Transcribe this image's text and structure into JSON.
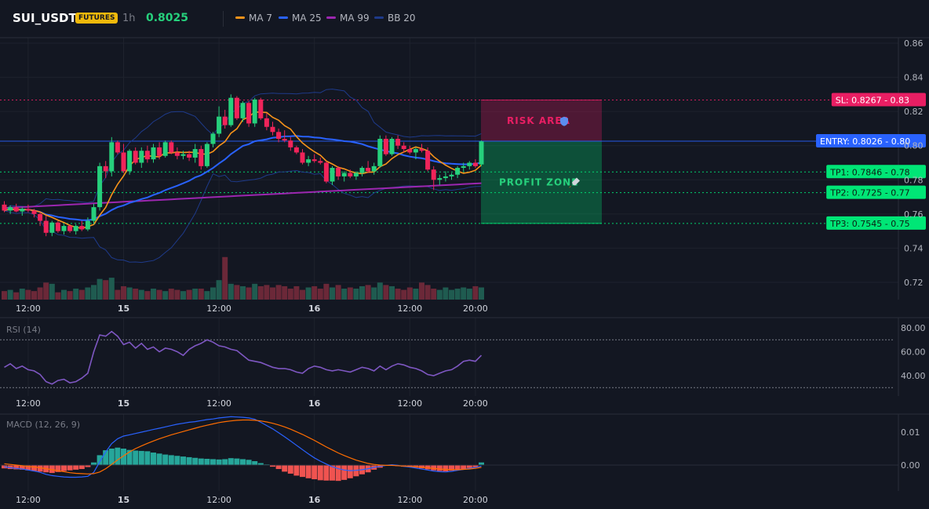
{
  "header": {
    "symbol": "SUI_USDT",
    "badge": "FUTURES",
    "timeframe": "1h",
    "price": "0.8025",
    "legend": [
      {
        "name": "MA 7",
        "color": "#f7931a"
      },
      {
        "name": "MA 25",
        "color": "#2962ff"
      },
      {
        "name": "MA 99",
        "color": "#9c27b0"
      },
      {
        "name": "BB 20",
        "color": "#1e3a8a"
      }
    ]
  },
  "chart_data": [
    {
      "type": "candlestick",
      "panel": "price",
      "y_ticks": [
        "0.86",
        "0.84",
        "0.82",
        "0.80",
        "0.78",
        "0.76",
        "0.74",
        "0.72"
      ],
      "ylim": [
        0.71,
        0.87
      ],
      "x_tick_labels": [
        "12:00",
        "15",
        "12:00",
        "16",
        "12:00",
        "20:00"
      ],
      "x_tick_index": [
        4,
        20,
        36,
        52,
        68,
        79
      ],
      "candles": [
        [
          0.7655,
          0.7675,
          0.761,
          0.762
        ],
        [
          0.762,
          0.765,
          0.76,
          0.764
        ],
        [
          0.764,
          0.766,
          0.761,
          0.7615
        ],
        [
          0.7615,
          0.764,
          0.759,
          0.763
        ],
        [
          0.763,
          0.7655,
          0.761,
          0.762
        ],
        [
          0.762,
          0.763,
          0.758,
          0.76
        ],
        [
          0.76,
          0.761,
          0.753,
          0.756
        ],
        [
          0.756,
          0.759,
          0.747,
          0.749
        ],
        [
          0.749,
          0.756,
          0.747,
          0.755
        ],
        [
          0.755,
          0.756,
          0.749,
          0.75
        ],
        [
          0.75,
          0.754,
          0.748,
          0.753
        ],
        [
          0.753,
          0.754,
          0.749,
          0.75
        ],
        [
          0.75,
          0.754,
          0.748,
          0.753
        ],
        [
          0.753,
          0.756,
          0.75,
          0.751
        ],
        [
          0.751,
          0.758,
          0.75,
          0.756
        ],
        [
          0.756,
          0.766,
          0.754,
          0.764
        ],
        [
          0.764,
          0.79,
          0.762,
          0.788
        ],
        [
          0.788,
          0.791,
          0.781,
          0.785
        ],
        [
          0.785,
          0.805,
          0.782,
          0.802
        ],
        [
          0.802,
          0.803,
          0.795,
          0.796
        ],
        [
          0.796,
          0.801,
          0.784,
          0.785
        ],
        [
          0.785,
          0.798,
          0.783,
          0.797
        ],
        [
          0.797,
          0.799,
          0.789,
          0.79
        ],
        [
          0.79,
          0.799,
          0.787,
          0.797
        ],
        [
          0.797,
          0.8,
          0.79,
          0.792
        ],
        [
          0.792,
          0.801,
          0.79,
          0.799
        ],
        [
          0.799,
          0.802,
          0.792,
          0.794
        ],
        [
          0.794,
          0.803,
          0.793,
          0.802
        ],
        [
          0.802,
          0.803,
          0.795,
          0.796
        ],
        [
          0.796,
          0.799,
          0.792,
          0.794
        ],
        [
          0.794,
          0.797,
          0.792,
          0.795
        ],
        [
          0.795,
          0.797,
          0.791,
          0.793
        ],
        [
          0.793,
          0.801,
          0.79,
          0.798
        ],
        [
          0.798,
          0.8,
          0.786,
          0.788
        ],
        [
          0.788,
          0.802,
          0.787,
          0.801
        ],
        [
          0.801,
          0.808,
          0.799,
          0.807
        ],
        [
          0.807,
          0.823,
          0.805,
          0.817
        ],
        [
          0.817,
          0.821,
          0.81,
          0.812
        ],
        [
          0.812,
          0.83,
          0.811,
          0.828
        ],
        [
          0.828,
          0.829,
          0.815,
          0.816
        ],
        [
          0.816,
          0.826,
          0.814,
          0.825
        ],
        [
          0.825,
          0.826,
          0.811,
          0.813
        ],
        [
          0.813,
          0.828,
          0.811,
          0.827
        ],
        [
          0.827,
          0.828,
          0.815,
          0.816
        ],
        [
          0.816,
          0.819,
          0.809,
          0.811
        ],
        [
          0.811,
          0.814,
          0.806,
          0.808
        ],
        [
          0.808,
          0.81,
          0.802,
          0.804
        ],
        [
          0.804,
          0.809,
          0.802,
          0.803
        ],
        [
          0.803,
          0.805,
          0.797,
          0.799
        ],
        [
          0.799,
          0.8,
          0.795,
          0.796
        ],
        [
          0.796,
          0.798,
          0.789,
          0.79
        ],
        [
          0.79,
          0.794,
          0.788,
          0.792
        ],
        [
          0.792,
          0.795,
          0.79,
          0.791
        ],
        [
          0.791,
          0.793,
          0.789,
          0.79
        ],
        [
          0.79,
          0.791,
          0.778,
          0.779
        ],
        [
          0.779,
          0.788,
          0.777,
          0.787
        ],
        [
          0.787,
          0.788,
          0.78,
          0.782
        ],
        [
          0.782,
          0.785,
          0.779,
          0.784
        ],
        [
          0.784,
          0.786,
          0.781,
          0.782
        ],
        [
          0.782,
          0.785,
          0.78,
          0.784
        ],
        [
          0.784,
          0.788,
          0.782,
          0.787
        ],
        [
          0.787,
          0.791,
          0.784,
          0.785
        ],
        [
          0.785,
          0.79,
          0.783,
          0.788
        ],
        [
          0.788,
          0.806,
          0.787,
          0.804
        ],
        [
          0.804,
          0.806,
          0.794,
          0.795
        ],
        [
          0.795,
          0.805,
          0.794,
          0.804
        ],
        [
          0.804,
          0.806,
          0.798,
          0.8
        ],
        [
          0.8,
          0.802,
          0.796,
          0.798
        ],
        [
          0.798,
          0.8,
          0.795,
          0.796
        ],
        [
          0.796,
          0.799,
          0.792,
          0.798
        ],
        [
          0.798,
          0.801,
          0.796,
          0.797
        ],
        [
          0.797,
          0.799,
          0.785,
          0.786
        ],
        [
          0.786,
          0.788,
          0.774,
          0.78
        ],
        [
          0.78,
          0.783,
          0.777,
          0.781
        ],
        [
          0.781,
          0.785,
          0.779,
          0.782
        ],
        [
          0.782,
          0.784,
          0.78,
          0.783
        ],
        [
          0.783,
          0.788,
          0.781,
          0.787
        ],
        [
          0.787,
          0.79,
          0.785,
          0.788
        ],
        [
          0.788,
          0.791,
          0.786,
          0.79
        ],
        [
          0.79,
          0.792,
          0.787,
          0.788
        ],
        [
          0.789,
          0.803,
          0.788,
          0.8025
        ]
      ],
      "volume": [
        7,
        8,
        6,
        9,
        8,
        7,
        10,
        14,
        13,
        6,
        8,
        7,
        9,
        8,
        10,
        12,
        17,
        16,
        18,
        8,
        11,
        10,
        9,
        8,
        7,
        9,
        8,
        7,
        9,
        8,
        7,
        8,
        9,
        9,
        7,
        10,
        16,
        35,
        13,
        12,
        11,
        10,
        13,
        11,
        12,
        10,
        12,
        11,
        9,
        11,
        8,
        10,
        11,
        9,
        13,
        10,
        12,
        9,
        10,
        9,
        11,
        12,
        10,
        14,
        12,
        11,
        9,
        8,
        10,
        9,
        14,
        12,
        9,
        8,
        10,
        8,
        9,
        10,
        9,
        11,
        10
      ],
      "volume_up": [
        false,
        true,
        false,
        true,
        false,
        false,
        false,
        false,
        true,
        false,
        true,
        false,
        true,
        false,
        true,
        true,
        true,
        false,
        true,
        false,
        false,
        true,
        false,
        true,
        false,
        true,
        false,
        true,
        false,
        false,
        true,
        false,
        true,
        false,
        true,
        true,
        true,
        false,
        true,
        false,
        true,
        false,
        true,
        false,
        false,
        false,
        false,
        false,
        false,
        false,
        false,
        true,
        false,
        false,
        false,
        true,
        false,
        true,
        false,
        true,
        true,
        false,
        true,
        true,
        false,
        true,
        false,
        false,
        false,
        true,
        false,
        false,
        false,
        true,
        true,
        true,
        true,
        true,
        true,
        false,
        true
      ],
      "levels": [
        {
          "label": "SL: 0.8267",
          "tag": "0.83",
          "value": 0.8267,
          "color": "#e91e63"
        },
        {
          "label": "ENTRY: 0.8026",
          "tag": "0.80",
          "value": 0.8026,
          "color": "#2962ff"
        },
        {
          "label": "TP1: 0.7846",
          "tag": "0.78",
          "value": 0.7846,
          "color": "#00e676"
        },
        {
          "label": "TP2: 0.7725",
          "tag": "0.77",
          "value": 0.7725,
          "color": "#00e676"
        },
        {
          "label": "TP3: 0.7545",
          "tag": "0.75",
          "value": 0.7545,
          "color": "#00e676"
        }
      ],
      "zones": [
        {
          "label": "RISK AREA",
          "icon": "shield-icon",
          "from": 0.8026,
          "to": 0.8267,
          "color": "#e91e63"
        },
        {
          "label": "PROFIT ZONE",
          "icon": "rocket-icon",
          "from": 0.7545,
          "to": 0.8026,
          "color": "#00e676"
        }
      ]
    },
    {
      "type": "line",
      "panel": "rsi",
      "title": "RSI (14)",
      "y_ticks": [
        "80.00",
        "60.00",
        "40.00"
      ],
      "ylim": [
        25,
        85
      ],
      "levels": [
        70,
        30
      ],
      "series": [
        {
          "color": "#7e57c2",
          "values": [
            47,
            50,
            46,
            48,
            45,
            44,
            41,
            35,
            33,
            36,
            37,
            34,
            35,
            38,
            42,
            60,
            74,
            73,
            77,
            73,
            66,
            68,
            63,
            67,
            62,
            64,
            60,
            63,
            62,
            60,
            57,
            62,
            65,
            67,
            70,
            68,
            65,
            64,
            62,
            61,
            57,
            53,
            52,
            51,
            49,
            47,
            46,
            46,
            45,
            43,
            42,
            46,
            48,
            47,
            45,
            44,
            45,
            44,
            43,
            45,
            47,
            46,
            44,
            48,
            45,
            48,
            50,
            49,
            47,
            46,
            44,
            41,
            40,
            42,
            44,
            45,
            48,
            52,
            53,
            52,
            57
          ]
        }
      ]
    },
    {
      "type": "bar+line",
      "panel": "macd",
      "title": "MACD (12, 26, 9)",
      "y_ticks": [
        "0.01",
        "0.00"
      ],
      "ylim": [
        -0.0065,
        0.016
      ],
      "histogram": [
        -0.001,
        -0.0012,
        -0.0013,
        -0.0014,
        -0.0016,
        -0.0018,
        -0.002,
        -0.0022,
        -0.0024,
        -0.0021,
        -0.0018,
        -0.0016,
        -0.0014,
        -0.0012,
        -0.0006,
        0.0008,
        0.003,
        0.0045,
        0.005,
        0.0053,
        0.005,
        0.0046,
        0.0044,
        0.0043,
        0.0042,
        0.0038,
        0.0035,
        0.0032,
        0.003,
        0.0028,
        0.0026,
        0.0024,
        0.0022,
        0.002,
        0.0019,
        0.0018,
        0.0017,
        0.0018,
        0.0021,
        0.002,
        0.0018,
        0.0016,
        0.0012,
        0.0006,
        0.0002,
        -0.0005,
        -0.0012,
        -0.002,
        -0.0026,
        -0.0032,
        -0.0036,
        -0.004,
        -0.0043,
        -0.0046,
        -0.0047,
        -0.0047,
        -0.0048,
        -0.0045,
        -0.004,
        -0.0034,
        -0.0028,
        -0.0022,
        -0.0014,
        -0.0008,
        -0.0002,
        0.0001,
        -0.0003,
        -0.0005,
        -0.0006,
        -0.0008,
        -0.001,
        -0.0013,
        -0.0016,
        -0.0018,
        -0.0019,
        -0.0017,
        -0.0015,
        -0.0012,
        -0.0009,
        -0.0006,
        0.0008
      ],
      "series": [
        {
          "name": "MACD",
          "color": "#2962ff",
          "values": [
            -0.0005,
            -0.0008,
            -0.001,
            -0.0012,
            -0.0015,
            -0.0018,
            -0.0022,
            -0.0028,
            -0.0032,
            -0.0034,
            -0.0036,
            -0.0037,
            -0.0037,
            -0.0036,
            -0.0034,
            -0.0022,
            0.001,
            0.004,
            0.0065,
            0.008,
            0.0088,
            0.0092,
            0.0096,
            0.01,
            0.0104,
            0.0108,
            0.0112,
            0.0116,
            0.012,
            0.0124,
            0.0127,
            0.013,
            0.0132,
            0.0135,
            0.0138,
            0.014,
            0.0143,
            0.0145,
            0.0147,
            0.0146,
            0.0145,
            0.0143,
            0.0139,
            0.013,
            0.012,
            0.011,
            0.0098,
            0.0086,
            0.0073,
            0.006,
            0.0047,
            0.0034,
            0.0022,
            0.0012,
            0.0003,
            -0.0005,
            -0.0011,
            -0.0015,
            -0.0017,
            -0.0016,
            -0.0014,
            -0.0011,
            -0.0007,
            -0.0004,
            -0.0001,
            0.0001,
            -0.0001,
            -0.0004,
            -0.0006,
            -0.0009,
            -0.0012,
            -0.0015,
            -0.0018,
            -0.002,
            -0.0021,
            -0.0019,
            -0.0016,
            -0.0013,
            -0.001,
            -0.0007,
            -0.0003
          ]
        },
        {
          "name": "Signal",
          "color": "#ff6d00",
          "values": [
            0.0004,
            0.0002,
            0.0,
            -0.0002,
            -0.0004,
            -0.0006,
            -0.0008,
            -0.0011,
            -0.0014,
            -0.0017,
            -0.002,
            -0.0023,
            -0.0025,
            -0.0026,
            -0.0027,
            -0.0026,
            -0.0021,
            -0.0011,
            0.0002,
            0.0016,
            0.0028,
            0.004,
            0.005,
            0.0058,
            0.0066,
            0.0073,
            0.008,
            0.0086,
            0.0092,
            0.0097,
            0.0102,
            0.0107,
            0.0112,
            0.0117,
            0.0121,
            0.0125,
            0.0129,
            0.0132,
            0.0134,
            0.0136,
            0.0137,
            0.0137,
            0.0136,
            0.0134,
            0.0131,
            0.0127,
            0.0122,
            0.0116,
            0.0109,
            0.0101,
            0.0093,
            0.0084,
            0.0075,
            0.0065,
            0.0055,
            0.0046,
            0.0037,
            0.0029,
            0.0022,
            0.0015,
            0.001,
            0.0005,
            0.0002,
            0.0,
            -0.0001,
            -0.0001,
            -0.0002,
            -0.0003,
            -0.0004,
            -0.0005,
            -0.0007,
            -0.0008,
            -0.001,
            -0.0012,
            -0.0013,
            -0.0014,
            -0.0014,
            -0.0013,
            -0.0012,
            -0.001,
            -0.0007
          ]
        }
      ]
    }
  ]
}
